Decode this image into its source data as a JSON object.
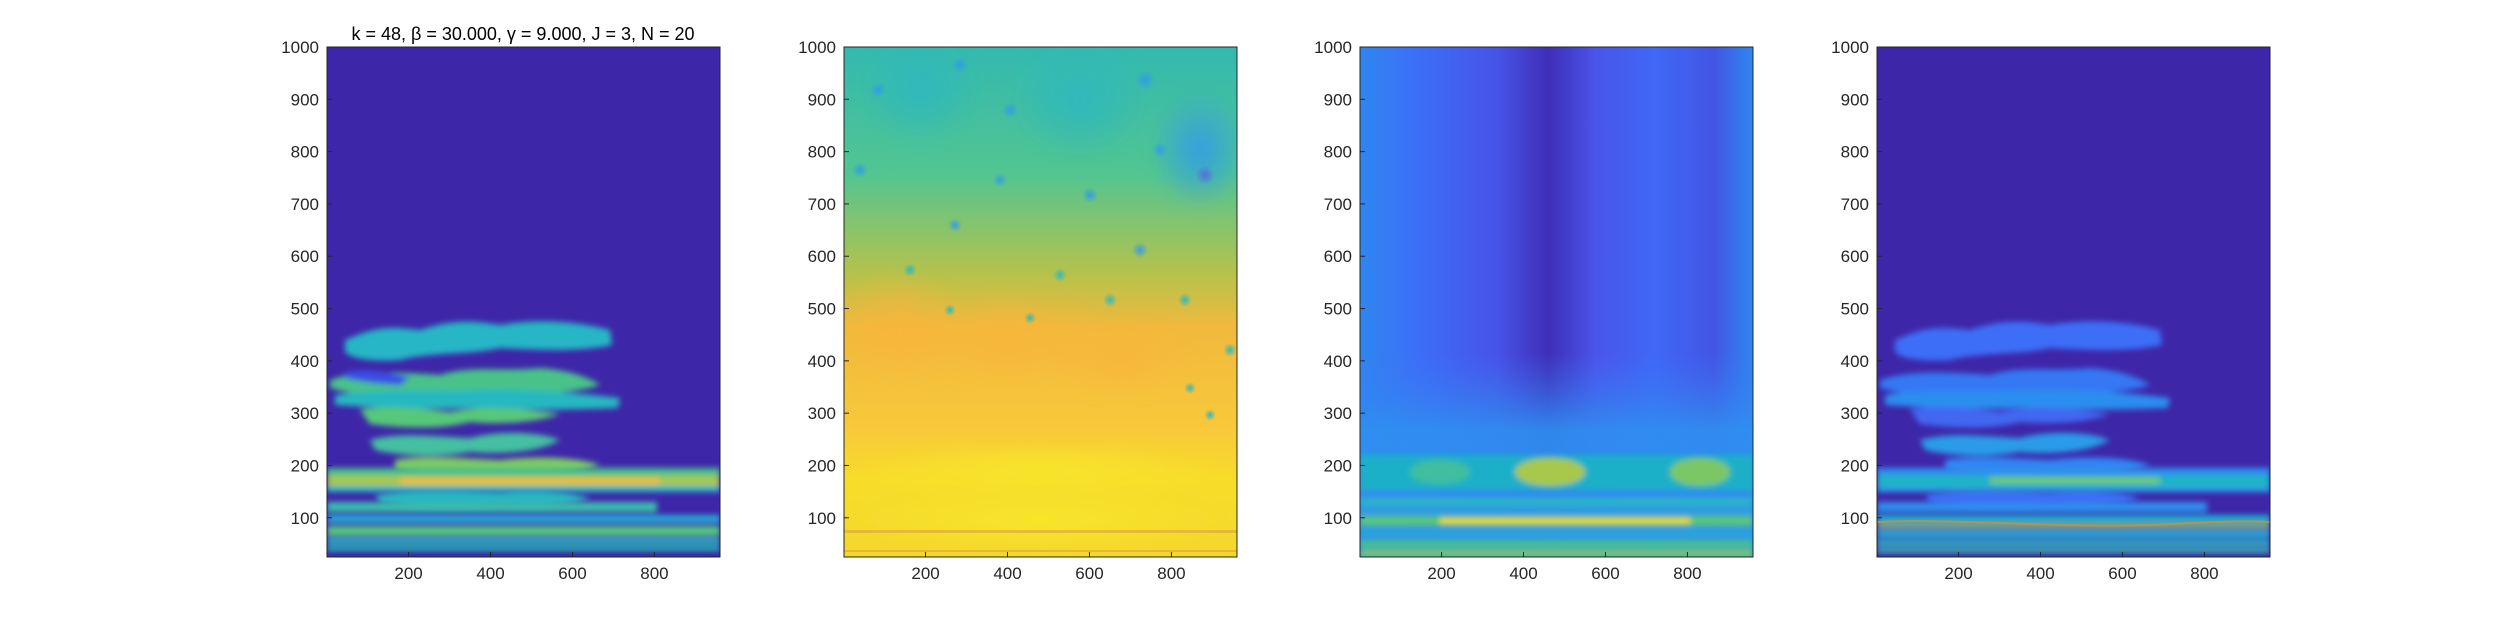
{
  "figure": {
    "title": "k = 48, β = 30.000, γ = 9.000, J = 3, N = 20"
  },
  "colors": {
    "background": "#ffffff",
    "axis": "#262626",
    "colormap": "parula",
    "colormap_stops": [
      "#3e26a8",
      "#4543e0",
      "#3e6afa",
      "#2c90ef",
      "#1baed3",
      "#22c0a4",
      "#56c97e",
      "#99c75a",
      "#d5bb3e",
      "#fbbf3c",
      "#f6d72f",
      "#f9fb15"
    ]
  },
  "chart_data": [
    {
      "type": "heatmap",
      "panel": 1,
      "title": "k = 48, β = 30.000, γ = 9.000, J = 3, N = 20",
      "xlabel": "",
      "ylabel": "",
      "xlim": [
        1,
        960
      ],
      "ylim": [
        25,
        1000
      ],
      "xticks": [
        "200",
        "400",
        "600",
        "800"
      ],
      "yticks": [
        "100",
        "200",
        "300",
        "400",
        "500",
        "600",
        "700",
        "800",
        "900",
        "1000"
      ],
      "description_values": {
        "background_level": 0.0,
        "features": [
          {
            "x": [
              1,
              960
            ],
            "y": [
              40,
              115
            ],
            "level": 0.55
          },
          {
            "x": [
              1,
              960
            ],
            "y": [
              160,
              205
            ],
            "level": 0.7
          },
          {
            "x": [
              100,
              650
            ],
            "y": [
              210,
              280
            ],
            "level": 0.5
          },
          {
            "x": [
              150,
              780
            ],
            "y": [
              280,
              330
            ],
            "level": 0.5
          },
          {
            "x": [
              1,
              700
            ],
            "y": [
              330,
              420
            ],
            "level": 0.55
          },
          {
            "x": [
              200,
              650
            ],
            "y": [
              420,
              480
            ],
            "level": 0.45
          }
        ]
      }
    },
    {
      "type": "heatmap",
      "panel": 2,
      "title": "",
      "xlim": [
        1,
        960
      ],
      "ylim": [
        25,
        1000
      ],
      "xticks": [
        "200",
        "400",
        "600",
        "800"
      ],
      "yticks": [
        "100",
        "200",
        "300",
        "400",
        "500",
        "600",
        "700",
        "800",
        "900",
        "1000"
      ],
      "description_values": {
        "top_level": 0.45,
        "bottom_level": 0.95,
        "transition_y": 550
      }
    },
    {
      "type": "heatmap",
      "panel": 3,
      "title": "",
      "xlim": [
        1,
        960
      ],
      "ylim": [
        25,
        1000
      ],
      "xticks": [
        "200",
        "400",
        "600",
        "800"
      ],
      "yticks": [
        "100",
        "200",
        "300",
        "400",
        "500",
        "600",
        "700",
        "800",
        "900",
        "1000"
      ],
      "description_values": {
        "background_level": 0.22,
        "dark_column_x": 480,
        "bright_band_y": [
          80,
          200
        ]
      }
    },
    {
      "type": "heatmap",
      "panel": 4,
      "title": "",
      "xlim": [
        1,
        960
      ],
      "ylim": [
        25,
        1000
      ],
      "xticks": [
        "200",
        "400",
        "600",
        "800"
      ],
      "yticks": [
        "100",
        "200",
        "300",
        "400",
        "500",
        "600",
        "700",
        "800",
        "900",
        "1000"
      ],
      "description_values": {
        "background_level": 0.0,
        "peak_level": 0.7
      }
    }
  ]
}
